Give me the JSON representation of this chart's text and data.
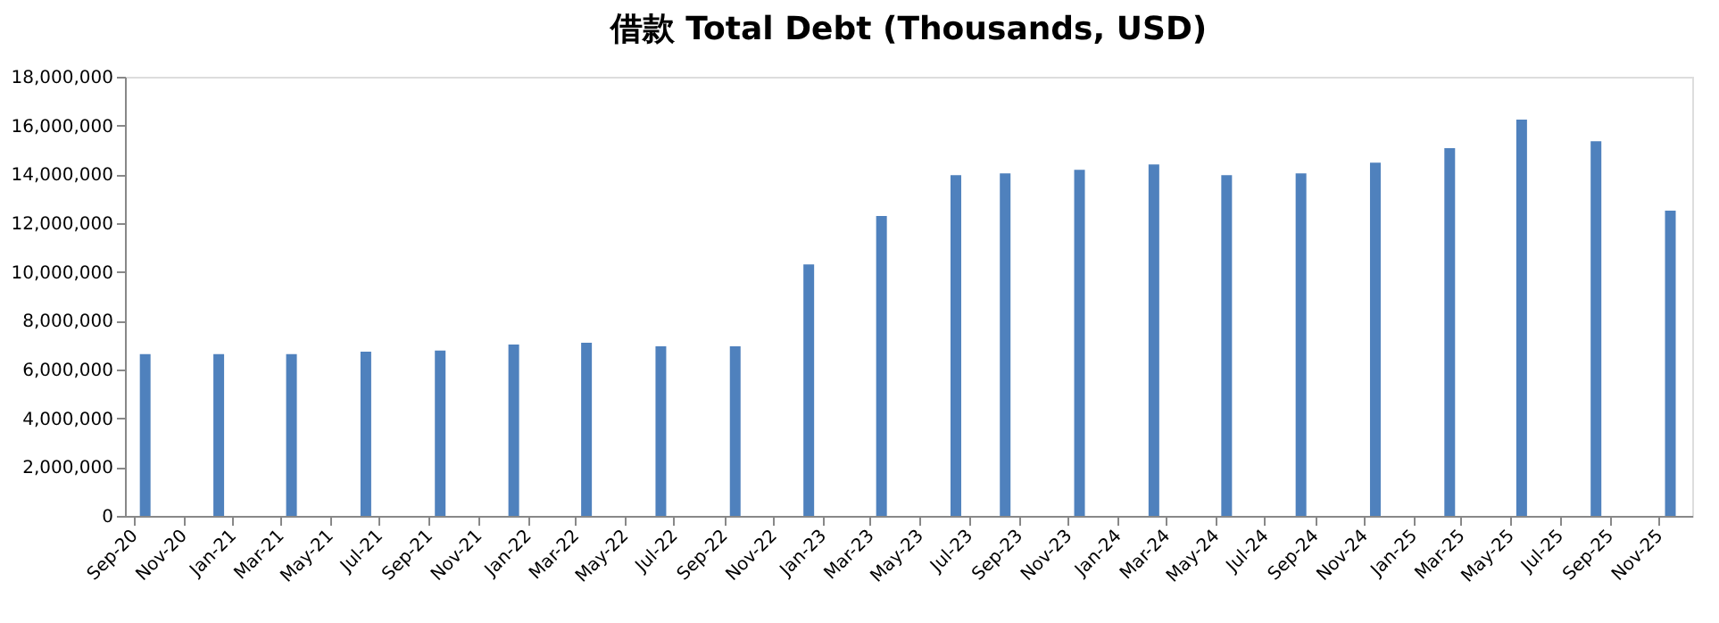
{
  "chart_data": {
    "type": "bar",
    "title": "借款 Total Debt (Thousands, USD)",
    "x": [
      "2020-09-15",
      "2020-12-15",
      "2021-03-15",
      "2021-06-15",
      "2021-09-15",
      "2021-12-15",
      "2022-03-15",
      "2022-06-15",
      "2022-09-15",
      "2022-12-15",
      "2023-03-15",
      "2023-06-15",
      "2023-08-15",
      "2023-11-15",
      "2024-02-15",
      "2024-05-15",
      "2024-08-15",
      "2024-11-15",
      "2025-02-15",
      "2025-05-15",
      "2025-08-15",
      "2025-11-15"
    ],
    "values": [
      6630000,
      6630000,
      6630000,
      6730000,
      6780000,
      7020000,
      7100000,
      6950000,
      6950000,
      10310000,
      12290000,
      13970000,
      14040000,
      14190000,
      14410000,
      13970000,
      14040000,
      14480000,
      15070000,
      16240000,
      15360000,
      12510000
    ],
    "color": "#4f81bd",
    "xlim": [
      "2020-09",
      "2025-12"
    ],
    "xticks": [
      {
        "value": "2020-09",
        "label": "Sep-20"
      },
      {
        "value": "2020-11",
        "label": "Nov-20"
      },
      {
        "value": "2021-01",
        "label": "Jan-21"
      },
      {
        "value": "2021-03",
        "label": "Mar-21"
      },
      {
        "value": "2021-05",
        "label": "May-21"
      },
      {
        "value": "2021-07",
        "label": "Jul-21"
      },
      {
        "value": "2021-09",
        "label": "Sep-21"
      },
      {
        "value": "2021-11",
        "label": "Nov-21"
      },
      {
        "value": "2022-01",
        "label": "Jan-22"
      },
      {
        "value": "2022-03",
        "label": "Mar-22"
      },
      {
        "value": "2022-05",
        "label": "May-22"
      },
      {
        "value": "2022-07",
        "label": "Jul-22"
      },
      {
        "value": "2022-09",
        "label": "Sep-22"
      },
      {
        "value": "2022-11",
        "label": "Nov-22"
      },
      {
        "value": "2023-01",
        "label": "Jan-23"
      },
      {
        "value": "2023-03",
        "label": "Mar-23"
      },
      {
        "value": "2023-05",
        "label": "May-23"
      },
      {
        "value": "2023-07",
        "label": "Jul-23"
      },
      {
        "value": "2023-09",
        "label": "Sep-23"
      },
      {
        "value": "2023-11",
        "label": "Nov-23"
      },
      {
        "value": "2024-01",
        "label": "Jan-24"
      },
      {
        "value": "2024-03",
        "label": "Mar-24"
      },
      {
        "value": "2024-05",
        "label": "May-24"
      },
      {
        "value": "2024-07",
        "label": "Jul-24"
      },
      {
        "value": "2024-09",
        "label": "Sep-24"
      },
      {
        "value": "2024-11",
        "label": "Nov-24"
      },
      {
        "value": "2025-01",
        "label": "Jan-25"
      },
      {
        "value": "2025-03",
        "label": "Mar-25"
      },
      {
        "value": "2025-05",
        "label": "May-25"
      },
      {
        "value": "2025-07",
        "label": "Jul-25"
      },
      {
        "value": "2025-09",
        "label": "Sep-25"
      },
      {
        "value": "2025-11",
        "label": "Nov-25"
      }
    ],
    "ylim": [
      0,
      18000000
    ],
    "yticks": [
      {
        "value": 0,
        "label": "0"
      },
      {
        "value": 2000000,
        "label": "2,000,000"
      },
      {
        "value": 4000000,
        "label": "4,000,000"
      },
      {
        "value": 6000000,
        "label": "6,000,000"
      },
      {
        "value": 8000000,
        "label": "8,000,000"
      },
      {
        "value": 10000000,
        "label": "10,000,000"
      },
      {
        "value": 12000000,
        "label": "12,000,000"
      },
      {
        "value": 14000000,
        "label": "14,000,000"
      },
      {
        "value": 16000000,
        "label": "16,000,000"
      },
      {
        "value": 18000000,
        "label": "18,000,000"
      }
    ],
    "grid": false
  }
}
